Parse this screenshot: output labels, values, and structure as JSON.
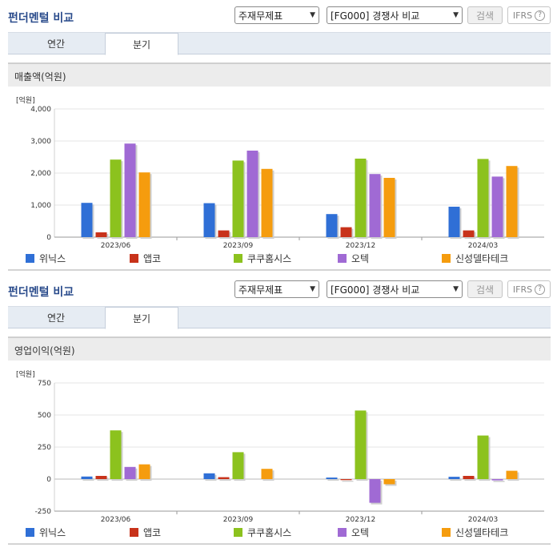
{
  "panels": [
    {
      "title": "펀더멘털 비교",
      "select1": "주재무제표",
      "select2": "[FG000] 경쟁사 비교",
      "search_label": "검색",
      "ifrs_label": "IFRS",
      "help_glyph": "?",
      "tabs": [
        {
          "label": "연간"
        },
        {
          "label": "분기"
        }
      ],
      "active_tab": "분기",
      "subtitle": "매출액(억원)",
      "unit": "[억원]"
    },
    {
      "title": "펀더멘털 비교",
      "select1": "주재무제표",
      "select2": "[FG000] 경쟁사 비교",
      "search_label": "검색",
      "ifrs_label": "IFRS",
      "help_glyph": "?",
      "tabs": [
        {
          "label": "연간"
        },
        {
          "label": "분기"
        }
      ],
      "active_tab": "분기",
      "subtitle": "영업이익(억원)",
      "unit": "[억원]"
    }
  ],
  "icons": {
    "select_chevron": "chevron-down-icon",
    "help": "help-circle-icon"
  },
  "chart_data": [
    {
      "type": "bar",
      "title": "매출액(억원)",
      "ylabel": "[억원]",
      "categories": [
        "2023/06",
        "2023/09",
        "2023/12",
        "2024/03"
      ],
      "ylim": [
        0,
        4000
      ],
      "yticks": [
        0,
        1000,
        2000,
        3000,
        4000
      ],
      "ytick_labels": [
        "0",
        "1,000",
        "2,000",
        "3,000",
        "4,000"
      ],
      "grid": true,
      "legend": "bottom",
      "series": [
        {
          "name": "위닉스",
          "color": "#2f6fd6",
          "values": [
            1070,
            1060,
            720,
            950
          ]
        },
        {
          "name": "앱코",
          "color": "#c8321a",
          "values": [
            150,
            210,
            310,
            210
          ]
        },
        {
          "name": "쿠쿠홈시스",
          "color": "#8cc21e",
          "values": [
            2420,
            2390,
            2450,
            2440
          ]
        },
        {
          "name": "오텍",
          "color": "#a06ad4",
          "values": [
            2920,
            2700,
            1970,
            1890
          ]
        },
        {
          "name": "신성델타테크",
          "color": "#f59c0e",
          "values": [
            2020,
            2130,
            1850,
            2220
          ]
        }
      ]
    },
    {
      "type": "bar",
      "title": "영업이익(억원)",
      "ylabel": "[억원]",
      "categories": [
        "2023/06",
        "2023/09",
        "2023/12",
        "2024/03"
      ],
      "ylim": [
        -250,
        750
      ],
      "yticks": [
        -250,
        0,
        250,
        500,
        750
      ],
      "ytick_labels": [
        "-250",
        "0",
        "250",
        "500",
        "750"
      ],
      "grid": true,
      "legend": "bottom",
      "series": [
        {
          "name": "위닉스",
          "color": "#2f6fd6",
          "values": [
            20,
            45,
            12,
            18
          ]
        },
        {
          "name": "앱코",
          "color": "#c8321a",
          "values": [
            25,
            15,
            -8,
            25
          ]
        },
        {
          "name": "쿠쿠홈시스",
          "color": "#8cc21e",
          "values": [
            380,
            210,
            535,
            340
          ]
        },
        {
          "name": "오텍",
          "color": "#a06ad4",
          "values": [
            95,
            0,
            -185,
            -10
          ]
        },
        {
          "name": "신성델타테크",
          "color": "#f59c0e",
          "values": [
            115,
            80,
            -40,
            65
          ]
        }
      ]
    }
  ]
}
